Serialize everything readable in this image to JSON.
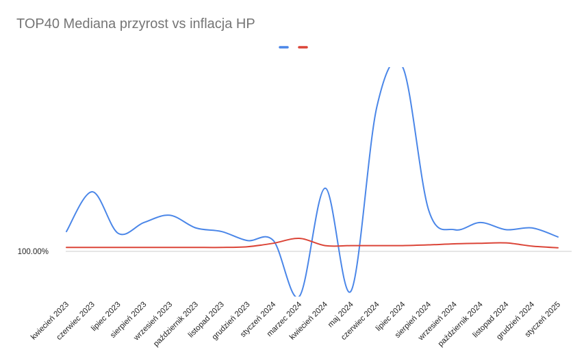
{
  "chart_data": {
    "type": "line",
    "title": "TOP40 Mediana przyrost vs inflacja HP",
    "xlabel": "",
    "ylabel": "",
    "categories": [
      "kwiecień 2023",
      "czerwiec 2023",
      "lipiec 2023",
      "sierpień 2023",
      "wrzesień 2023",
      "październik 2023",
      "listopad 2023",
      "grudzień 2023",
      "styczeń 2024",
      "marzec 2024",
      "kwiecień 2024",
      "maj 2024",
      "czerwiec 2024",
      "lipiec 2024",
      "sierpień 2024",
      "wrzesień 2024",
      "październik 2024",
      "listopad 2024",
      "grudzień 2024",
      "styczeń 2025"
    ],
    "y_ticks": [
      {
        "value": 100,
        "label": "100.00%"
      }
    ],
    "ylim": [
      97.5,
      110.2
    ],
    "grid": "baseline only",
    "legend_position": "top",
    "series": [
      {
        "color": "#4a86e8",
        "values": [
          101.1,
          103.3,
          101.0,
          101.6,
          102.0,
          101.3,
          101.1,
          100.6,
          100.6,
          97.5,
          103.5,
          97.8,
          108.0,
          110.2,
          102.3,
          101.2,
          101.6,
          101.2,
          101.3,
          100.8
        ]
      },
      {
        "color": "#db4437",
        "values": [
          100.22,
          100.22,
          100.22,
          100.22,
          100.22,
          100.22,
          100.22,
          100.26,
          100.45,
          100.72,
          100.32,
          100.32,
          100.32,
          100.32,
          100.36,
          100.42,
          100.45,
          100.47,
          100.29,
          100.2
        ]
      }
    ]
  }
}
